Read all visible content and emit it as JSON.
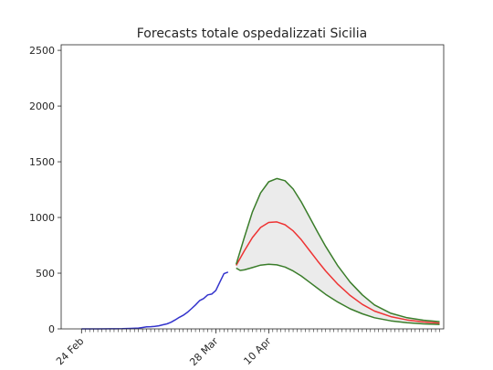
{
  "chart_data": {
    "type": "line",
    "title": "Forecasts totale ospedalizzati Sicilia",
    "xlabel": "",
    "ylabel": "",
    "x_axis": {
      "type": "date",
      "start": "2020-02-19",
      "end": "2020-05-23",
      "tick_labels": [
        {
          "date": "2020-02-24",
          "label": "24 Feb"
        },
        {
          "date": "2020-03-28",
          "label": "28 Mar"
        },
        {
          "date": "2020-04-10",
          "label": "10 Apr"
        }
      ],
      "minor_ticks": "daily"
    },
    "ylim": [
      0,
      2550
    ],
    "yticks": [
      0,
      500,
      1000,
      1500,
      2000,
      2500
    ],
    "grid": false,
    "legend": "none",
    "series": [
      {
        "role": "observed",
        "color": "#3333cc",
        "points": [
          [
            "2020-02-24",
            0
          ],
          [
            "2020-02-28",
            0
          ],
          [
            "2020-03-02",
            1
          ],
          [
            "2020-03-05",
            2
          ],
          [
            "2020-03-07",
            4
          ],
          [
            "2020-03-09",
            7
          ],
          [
            "2020-03-10",
            12
          ],
          [
            "2020-03-11",
            18
          ],
          [
            "2020-03-12",
            20
          ],
          [
            "2020-03-13",
            22
          ],
          [
            "2020-03-14",
            28
          ],
          [
            "2020-03-15",
            37
          ],
          [
            "2020-03-16",
            45
          ],
          [
            "2020-03-17",
            60
          ],
          [
            "2020-03-18",
            80
          ],
          [
            "2020-03-19",
            103
          ],
          [
            "2020-03-20",
            122
          ],
          [
            "2020-03-21",
            148
          ],
          [
            "2020-03-22",
            180
          ],
          [
            "2020-03-23",
            215
          ],
          [
            "2020-03-24",
            253
          ],
          [
            "2020-03-25",
            272
          ],
          [
            "2020-03-26",
            305
          ],
          [
            "2020-03-27",
            312
          ],
          [
            "2020-03-28",
            345
          ],
          [
            "2020-03-29",
            420
          ],
          [
            "2020-03-30",
            495
          ],
          [
            "2020-03-31",
            510
          ]
        ]
      },
      {
        "role": "forecast-central",
        "color": "#ee3333",
        "points": [
          [
            "2020-04-02",
            570
          ],
          [
            "2020-04-04",
            700
          ],
          [
            "2020-04-06",
            820
          ],
          [
            "2020-04-08",
            910
          ],
          [
            "2020-04-10",
            955
          ],
          [
            "2020-04-12",
            960
          ],
          [
            "2020-04-14",
            935
          ],
          [
            "2020-04-16",
            880
          ],
          [
            "2020-04-18",
            800
          ],
          [
            "2020-04-20",
            705
          ],
          [
            "2020-04-22",
            610
          ],
          [
            "2020-04-24",
            520
          ],
          [
            "2020-04-27",
            400
          ],
          [
            "2020-04-30",
            300
          ],
          [
            "2020-05-03",
            220
          ],
          [
            "2020-05-06",
            160
          ],
          [
            "2020-05-10",
            110
          ],
          [
            "2020-05-14",
            80
          ],
          [
            "2020-05-18",
            62
          ],
          [
            "2020-05-22",
            52
          ]
        ]
      },
      {
        "role": "forecast-upper",
        "color": "#3a7d2a",
        "points": [
          [
            "2020-04-02",
            580
          ],
          [
            "2020-04-04",
            820
          ],
          [
            "2020-04-06",
            1050
          ],
          [
            "2020-04-08",
            1220
          ],
          [
            "2020-04-10",
            1320
          ],
          [
            "2020-04-12",
            1350
          ],
          [
            "2020-04-14",
            1330
          ],
          [
            "2020-04-16",
            1255
          ],
          [
            "2020-04-18",
            1140
          ],
          [
            "2020-04-20",
            1005
          ],
          [
            "2020-04-22",
            870
          ],
          [
            "2020-04-24",
            740
          ],
          [
            "2020-04-27",
            565
          ],
          [
            "2020-04-30",
            420
          ],
          [
            "2020-05-03",
            305
          ],
          [
            "2020-05-06",
            215
          ],
          [
            "2020-05-10",
            140
          ],
          [
            "2020-05-14",
            100
          ],
          [
            "2020-05-18",
            78
          ],
          [
            "2020-05-22",
            65
          ]
        ]
      },
      {
        "role": "forecast-lower",
        "color": "#3a7d2a",
        "points": [
          [
            "2020-04-02",
            545
          ],
          [
            "2020-04-03",
            525
          ],
          [
            "2020-04-04",
            530
          ],
          [
            "2020-04-06",
            550
          ],
          [
            "2020-04-08",
            572
          ],
          [
            "2020-04-10",
            580
          ],
          [
            "2020-04-12",
            575
          ],
          [
            "2020-04-14",
            555
          ],
          [
            "2020-04-16",
            520
          ],
          [
            "2020-04-18",
            475
          ],
          [
            "2020-04-20",
            420
          ],
          [
            "2020-04-22",
            365
          ],
          [
            "2020-04-24",
            310
          ],
          [
            "2020-04-27",
            240
          ],
          [
            "2020-04-30",
            180
          ],
          [
            "2020-05-03",
            135
          ],
          [
            "2020-05-06",
            100
          ],
          [
            "2020-05-10",
            72
          ],
          [
            "2020-05-14",
            55
          ],
          [
            "2020-05-18",
            45
          ],
          [
            "2020-05-22",
            40
          ]
        ]
      }
    ],
    "band": {
      "between": [
        "forecast-lower",
        "forecast-upper"
      ],
      "color": "#ebebeb"
    }
  }
}
